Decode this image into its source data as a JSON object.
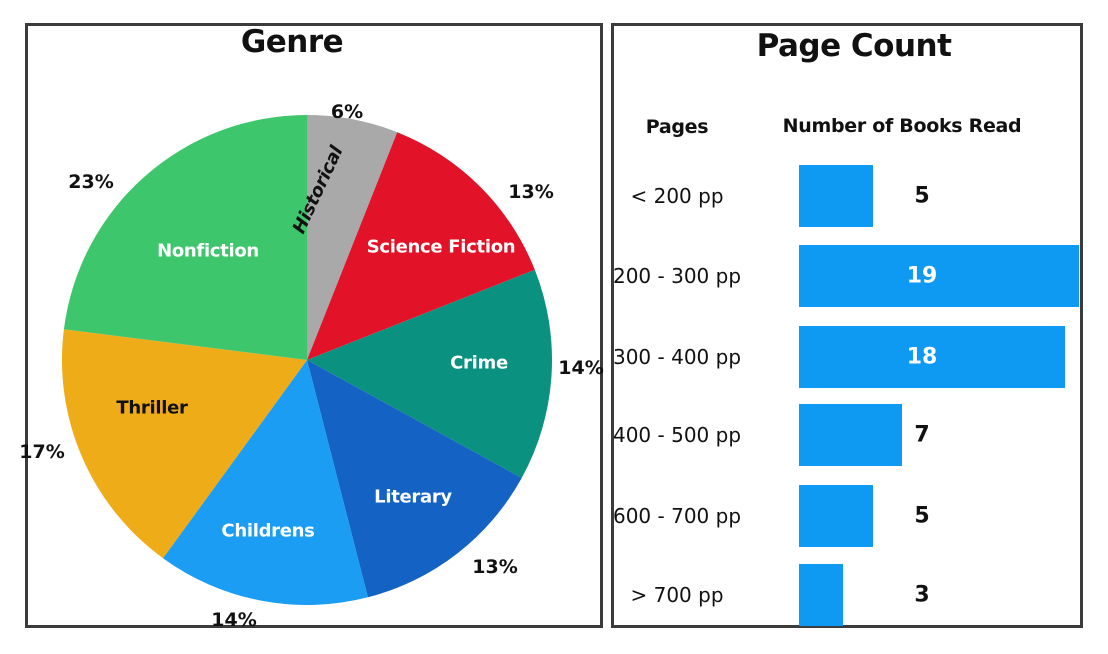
{
  "page": {
    "background": "#ffffff",
    "panel_border_color": "#3b3b3b",
    "text_color": "#111111"
  },
  "chart_data": [
    {
      "type": "pie",
      "title": "Genre",
      "start_angle_deg": 0,
      "direction": "clockwise",
      "segments": [
        {
          "label": "Historical",
          "value_pct": 6,
          "pct_label": "6%",
          "color": "#a9a9a9",
          "label_color": "#111111"
        },
        {
          "label": "Science Fiction",
          "value_pct": 13,
          "pct_label": "13%",
          "color": "#e21228",
          "label_color": "#ffffff"
        },
        {
          "label": "Crime",
          "value_pct": 14,
          "pct_label": "14%",
          "color": "#0b9180",
          "label_color": "#ffffff"
        },
        {
          "label": "Literary",
          "value_pct": 13,
          "pct_label": "13%",
          "color": "#1463c4",
          "label_color": "#ffffff"
        },
        {
          "label": "Childrens",
          "value_pct": 14,
          "pct_label": "14%",
          "color": "#1a9df3",
          "label_color": "#ffffff"
        },
        {
          "label": "Thriller",
          "value_pct": 17,
          "pct_label": "17%",
          "color": "#efac19",
          "label_color": "#111111"
        },
        {
          "label": "Nonfiction",
          "value_pct": 23,
          "pct_label": "23%",
          "color": "#3ec66d",
          "label_color": "#ffffff"
        }
      ]
    },
    {
      "type": "bar",
      "title": "Page Count",
      "orientation": "horizontal",
      "col_headers": [
        "Pages",
        "Number of Books Read"
      ],
      "categories": [
        "< 200 pp",
        "200 - 300 pp",
        "300 - 400 pp",
        "400 - 500 pp",
        "600 - 700 pp",
        "> 700 pp"
      ],
      "values": [
        5,
        19,
        18,
        7,
        5,
        3
      ],
      "bar_color": "#0e9af2",
      "value_label_inside_color": "#ffffff",
      "value_label_outside_color": "#111111",
      "xlim": [
        0,
        19.2
      ],
      "grid": false,
      "legend": false
    }
  ]
}
